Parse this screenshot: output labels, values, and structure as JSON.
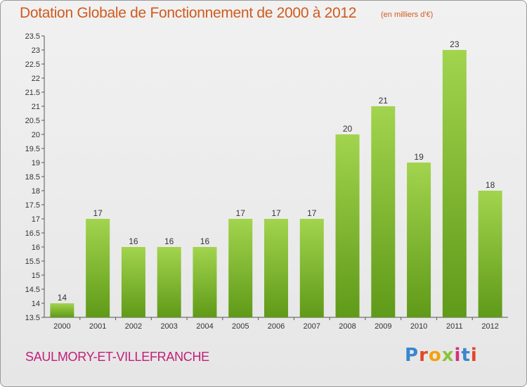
{
  "header": {
    "title": "Dotation Globale de Fonctionnement de 2000 à 2012",
    "unit": "(en milliers d'€)"
  },
  "footer": {
    "commune": "SAULMORY-ET-VILLEFRANCHE",
    "logo": "Proxiti"
  },
  "colors": {
    "bar_light": "#a2d44e",
    "bar_dark": "#5f9a18",
    "title": "#d05a1e",
    "commune": "#c0207a"
  },
  "chart_data": {
    "type": "bar",
    "title": "Dotation Globale de Fonctionnement de 2000 à 2012",
    "subtitle": "(en milliers d'€)",
    "categories": [
      "2000",
      "2001",
      "2002",
      "2003",
      "2004",
      "2005",
      "2006",
      "2007",
      "2008",
      "2009",
      "2010",
      "2011",
      "2012"
    ],
    "values": [
      14,
      17,
      16,
      16,
      16,
      17,
      17,
      17,
      20,
      21,
      19,
      23,
      18
    ],
    "data_labels": [
      "14",
      "17",
      "16",
      "16",
      "16",
      "17",
      "17",
      "17",
      "20",
      "21",
      "19",
      "23",
      "18"
    ],
    "ylim": [
      13.5,
      23.5
    ],
    "yticks": [
      13.5,
      14,
      14.5,
      15,
      15.5,
      16,
      16.5,
      17,
      17.5,
      18,
      18.5,
      19,
      19.5,
      20,
      20.5,
      21,
      21.5,
      22,
      22.5,
      23,
      23.5
    ],
    "ytick_labels": [
      "13.5",
      "14",
      "14.5",
      "15",
      "15.5",
      "16",
      "16.5",
      "17",
      "17.5",
      "18",
      "18.5",
      "19",
      "19.5",
      "20",
      "20.5",
      "21",
      "21.5",
      "22",
      "22.5",
      "23",
      "23.5"
    ],
    "xlabel": "",
    "ylabel": "",
    "grid": false
  }
}
